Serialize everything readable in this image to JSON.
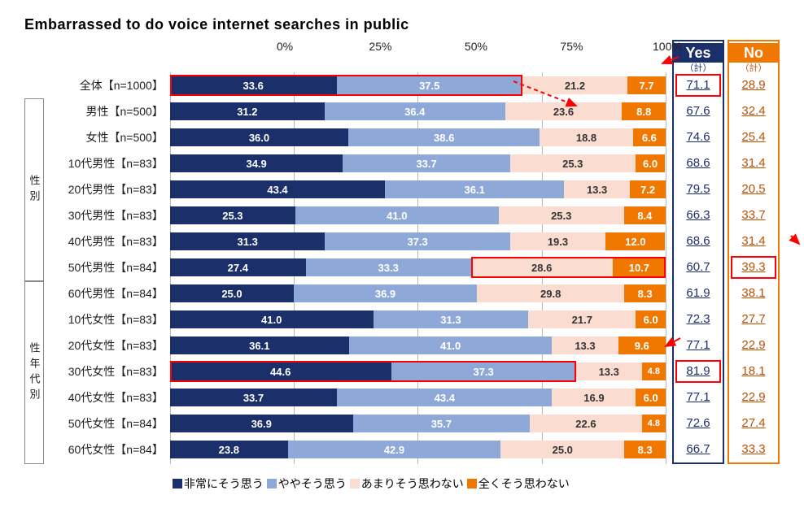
{
  "title": "Embarrassed to do voice internet searches in public",
  "colors": {
    "seg1": "#1b2f6a",
    "seg2": "#8ea8d8",
    "seg3": "#fbdcd0",
    "seg4": "#f07800",
    "yes_border": "#1b2f6a",
    "no_border": "#f07800",
    "highlight": "#f00"
  },
  "axis": {
    "ticks": [
      "0%",
      "25%",
      "50%",
      "75%",
      "100%"
    ],
    "positions": [
      0,
      25,
      50,
      75,
      100
    ]
  },
  "categories": [
    {
      "label_parts": [
        "",
        ""
      ],
      "span": 1,
      "empty": true
    },
    {
      "label_parts": [
        "性",
        "別"
      ],
      "span": 2
    },
    {
      "label_parts": [
        "性",
        "年",
        "代",
        "別"
      ],
      "span": 12
    }
  ],
  "rows": [
    {
      "label": "全体【n=1000】",
      "v": [
        33.6,
        37.5,
        21.2,
        7.7
      ],
      "yes": "71.1",
      "no": "28.9"
    },
    {
      "label": "男性【n=500】",
      "v": [
        31.2,
        36.4,
        23.6,
        8.8
      ],
      "yes": "67.6",
      "no": "32.4"
    },
    {
      "label": "女性【n=500】",
      "v": [
        36.0,
        38.6,
        18.8,
        6.6
      ],
      "yes": "74.6",
      "no": "25.4"
    },
    {
      "label": "10代男性【n=83】",
      "v": [
        34.9,
        33.7,
        25.3,
        6.0
      ],
      "yes": "68.6",
      "no": "31.4"
    },
    {
      "label": "20代男性【n=83】",
      "v": [
        43.4,
        36.1,
        13.3,
        7.2
      ],
      "yes": "79.5",
      "no": "20.5"
    },
    {
      "label": "30代男性【n=83】",
      "v": [
        25.3,
        41.0,
        25.3,
        8.4
      ],
      "yes": "66.3",
      "no": "33.7"
    },
    {
      "label": "40代男性【n=83】",
      "v": [
        31.3,
        37.3,
        19.3,
        12.0
      ],
      "yes": "68.6",
      "no": "31.4"
    },
    {
      "label": "50代男性【n=84】",
      "v": [
        27.4,
        33.3,
        28.6,
        10.7
      ],
      "yes": "60.7",
      "no": "39.3"
    },
    {
      "label": "60代男性【n=84】",
      "v": [
        25.0,
        36.9,
        29.8,
        8.3
      ],
      "yes": "61.9",
      "no": "38.1"
    },
    {
      "label": "10代女性【n=83】",
      "v": [
        41.0,
        31.3,
        21.7,
        6.0
      ],
      "yes": "72.3",
      "no": "27.7"
    },
    {
      "label": "20代女性【n=83】",
      "v": [
        36.1,
        41.0,
        13.3,
        9.6
      ],
      "yes": "77.1",
      "no": "22.9"
    },
    {
      "label": "30代女性【n=83】",
      "v": [
        44.6,
        37.3,
        13.3,
        4.8
      ],
      "yes": "81.9",
      "no": "18.1"
    },
    {
      "label": "40代女性【n=83】",
      "v": [
        33.7,
        43.4,
        16.9,
        6.0
      ],
      "yes": "77.1",
      "no": "22.9"
    },
    {
      "label": "50代女性【n=84】",
      "v": [
        36.9,
        35.7,
        22.6,
        4.8
      ],
      "yes": "72.6",
      "no": "27.4"
    },
    {
      "label": "60代女性【n=84】",
      "v": [
        23.8,
        42.9,
        25.0,
        8.3
      ],
      "yes": "66.7",
      "no": "33.3"
    }
  ],
  "legend": [
    {
      "label": "非常にそう思う",
      "color": "#1b2f6a"
    },
    {
      "label": "ややそう思う",
      "color": "#8ea8d8"
    },
    {
      "label": "あまりそう思わない",
      "color": "#fbdcd0"
    },
    {
      "label": "全くそう思わない",
      "color": "#f07800"
    }
  ],
  "yes_header": "Yes",
  "no_header": "No",
  "yes_sub": "（計）",
  "no_sub": "（計）",
  "highlights": {
    "bars": [
      {
        "row": 0,
        "start": 0,
        "end": 71.1
      },
      {
        "row": 7,
        "start": 60.7,
        "end": 100
      },
      {
        "row": 11,
        "start": 0,
        "end": 81.9
      }
    ],
    "yes_cells": [
      0,
      11
    ],
    "no_cells": [
      7
    ]
  }
}
